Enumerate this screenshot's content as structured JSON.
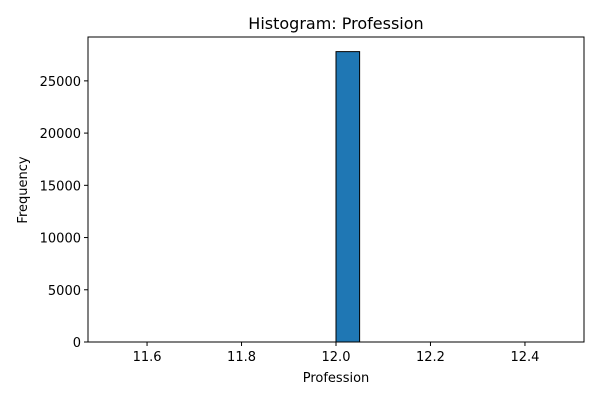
{
  "chart_data": {
    "type": "bar",
    "title": "Histogram: Profession",
    "xlabel": "Profession",
    "ylabel": "Frequency",
    "xlim": [
      11.475,
      12.525
    ],
    "ylim": [
      0,
      29200
    ],
    "x_ticks": [
      11.6,
      11.8,
      12.0,
      12.2,
      12.4
    ],
    "x_tick_labels": [
      "11.6",
      "11.8",
      "12.0",
      "12.2",
      "12.4"
    ],
    "y_ticks": [
      0,
      5000,
      10000,
      15000,
      20000,
      25000
    ],
    "y_tick_labels": [
      "0",
      "5000",
      "10000",
      "15000",
      "20000",
      "25000"
    ],
    "bin_start": 11.5,
    "bin_width": 0.05,
    "values": [
      0,
      0,
      0,
      0,
      0,
      0,
      0,
      0,
      0,
      0,
      27800,
      0,
      0,
      0,
      0,
      0,
      0,
      0,
      0,
      0
    ],
    "bar_color": "#1f77b4",
    "edge_color": "#000000",
    "grid": false,
    "legend": "none"
  }
}
